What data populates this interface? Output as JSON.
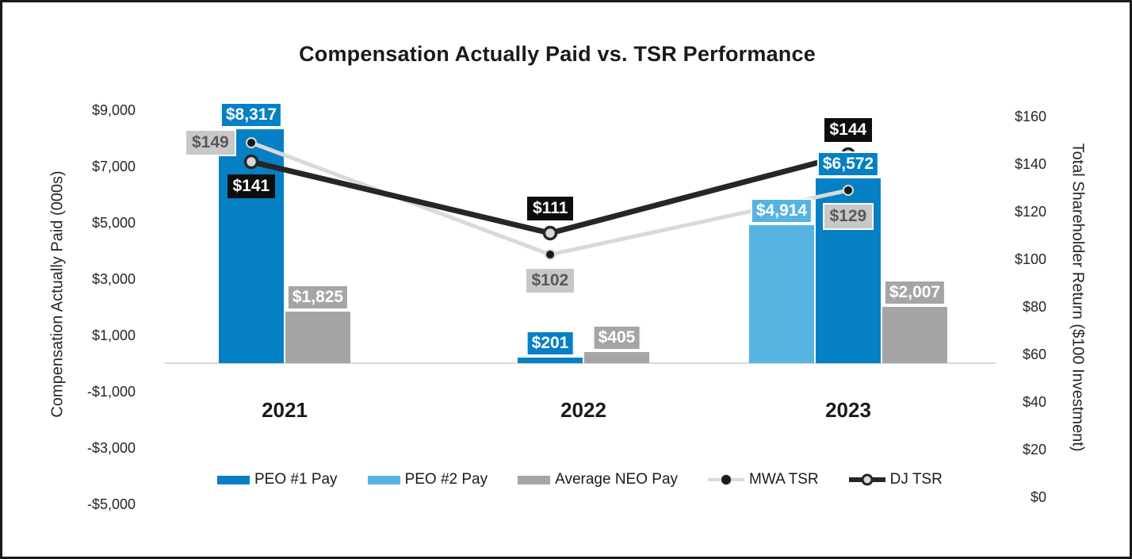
{
  "title": "Compensation Actually Paid vs. TSR Performance",
  "left_axis": {
    "title": "Compensation Actually Paid (000s)",
    "ticks": [
      9000,
      7000,
      5000,
      3000,
      1000,
      -1000,
      -3000,
      -5000
    ]
  },
  "right_axis": {
    "title": "Total Shareholder Return ($100 Investment)",
    "ticks": [
      160,
      140,
      120,
      100,
      80,
      60,
      40,
      20,
      0
    ]
  },
  "chart_data": {
    "type": "bar+line combo",
    "title": "Compensation Actually Paid vs. TSR Performance",
    "categories": [
      "2021",
      "2022",
      "2023"
    ],
    "bar_series": [
      {
        "name": "PEO #1 Pay",
        "color": "#0580C4",
        "values": [
          8317,
          201,
          6572
        ]
      },
      {
        "name": "PEO #2 Pay",
        "color": "#56B3E2",
        "values": [
          null,
          null,
          4914
        ]
      },
      {
        "name": "Average NEO Pay",
        "color": "#A5A5A5",
        "values": [
          1825,
          405,
          2007
        ]
      }
    ],
    "line_series": [
      {
        "name": "MWA TSR",
        "line_color": "#D9D9D9",
        "marker": "black-dot",
        "label_style": "gray",
        "values": [
          149,
          102,
          129
        ],
        "label_placement": [
          "left",
          "below",
          "below"
        ]
      },
      {
        "name": "DJ TSR",
        "line_color": "#262626",
        "marker": "open-circle",
        "label_style": "black",
        "values": [
          141,
          111,
          144
        ],
        "label_placement": [
          "below",
          "above",
          "above"
        ]
      }
    ],
    "axes": {
      "left_ylabel": "Compensation Actually Paid (000s)",
      "right_ylabel": "Total Shareholder Return ($100 Investment)",
      "left_ylim": [
        -5000,
        9000
      ],
      "right_ylim": [
        0,
        160
      ],
      "grid": false,
      "legend_position": "bottom"
    }
  }
}
